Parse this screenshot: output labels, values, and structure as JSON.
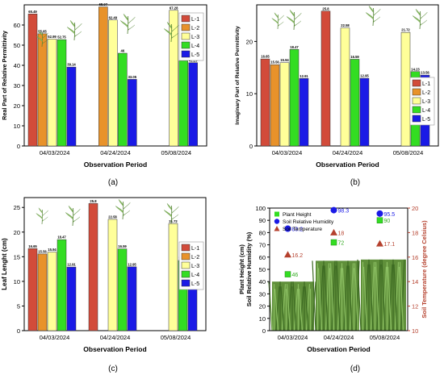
{
  "chart_data": [
    {
      "panel_label": "(a)",
      "type": "bar",
      "xlabel": "Observation Period",
      "ylabel": "Real Part of Relative Permittivity",
      "ylim": [
        0,
        70
      ],
      "yticks": [
        0,
        10,
        20,
        30,
        40,
        50,
        60
      ],
      "categories": [
        "04/03/2024",
        "04/24/2024",
        "05/08/2024"
      ],
      "series": [
        {
          "name": "L-1",
          "color": "#d24b3a",
          "values": [
            65.49,
            null,
            null
          ]
        },
        {
          "name": "L-2",
          "color": "#e8922a",
          "values": [
            55.65,
            68.97,
            null
          ]
        },
        {
          "name": "L-3",
          "color": "#ffff99",
          "values": [
            52.99,
            62.49,
            67.28
          ]
        },
        {
          "name": "L-4",
          "color": "#33dd22",
          "values": [
            52.75,
            46,
            42.28
          ]
        },
        {
          "name": "L-5",
          "color": "#1a1ae6",
          "values": [
            39.14,
            33.05,
            41.29
          ]
        }
      ],
      "legend": "right",
      "plant_icon_levels": [
        "L-1",
        "L-2",
        "L-3",
        "L-4",
        "L-5"
      ]
    },
    {
      "panel_label": "(b)",
      "type": "bar",
      "xlabel": "Observation Period",
      "ylabel": "Imaginary Part of Relative Permittivity",
      "ylim": [
        0,
        27
      ],
      "yticks": [
        0,
        10,
        20
      ],
      "categories": [
        "04/03/2024",
        "04/24/2024",
        "05/08/2024"
      ],
      "series": [
        {
          "name": "L-1",
          "color": "#d24b3a",
          "values": [
            16.65,
            25.8,
            null
          ]
        },
        {
          "name": "L-2",
          "color": "#e8922a",
          "values": [
            15.56,
            null,
            null
          ]
        },
        {
          "name": "L-3",
          "color": "#ffff99",
          "values": [
            15.94,
            22.58,
            21.72
          ]
        },
        {
          "name": "L-4",
          "color": "#33dd22",
          "values": [
            18.47,
            16.59,
            14.23
          ]
        },
        {
          "name": "L-5",
          "color": "#1a1ae6",
          "values": [
            12.91,
            12.95,
            13.56
          ]
        }
      ],
      "legend": "right",
      "plant_icon_levels": [
        "L-1",
        "L-2",
        "L-3",
        "L-4",
        "L-5"
      ]
    },
    {
      "panel_label": "(c)",
      "type": "bar",
      "xlabel": "Observation Period",
      "ylabel": "Leaf Lenght (cm)",
      "ylim": [
        0,
        27
      ],
      "yticks": [
        0,
        5,
        10,
        15,
        20,
        25
      ],
      "categories": [
        "04/03/2024",
        "04/24/2024",
        "05/08/2024"
      ],
      "series": [
        {
          "name": "L-1",
          "color": "#d24b3a",
          "values": [
            16.65,
            25.8,
            null
          ]
        },
        {
          "name": "L-2",
          "color": "#e8922a",
          "values": [
            15.56,
            null,
            null
          ]
        },
        {
          "name": "L-3",
          "color": "#ffff99",
          "values": [
            15.94,
            22.58,
            21.72
          ]
        },
        {
          "name": "L-4",
          "color": "#33dd22",
          "values": [
            18.47,
            16.59,
            14.23
          ]
        },
        {
          "name": "L-5",
          "color": "#1a1ae6",
          "values": [
            12.91,
            12.95,
            13.56
          ]
        }
      ],
      "legend": "right",
      "plant_icon_levels": [
        "L-1",
        "L-2",
        "L-3",
        "L-4",
        "L-5"
      ]
    },
    {
      "panel_label": "(d)",
      "type": "scatter",
      "xlabel": "Observation Period",
      "ylabel": "Plant Height (cm)\nSoil Relative Humidity (%)",
      "y2label": "Soil Temperature (degree Celsius)",
      "ylim": [
        0,
        100
      ],
      "yticks": [
        0,
        10,
        20,
        30,
        40,
        50,
        60,
        70,
        80,
        90,
        100
      ],
      "y2lim": [
        10,
        20
      ],
      "y2ticks": [
        10,
        12,
        14,
        16,
        18,
        20
      ],
      "categories": [
        "04/03/2024",
        "04/24/2024",
        "05/08/2024"
      ],
      "series": [
        {
          "name": "Plant Height",
          "marker": "square",
          "axis": "left",
          "color": "#33dd22",
          "values": [
            46,
            72,
            90
          ]
        },
        {
          "name": "Soil Relative Humidity",
          "marker": "circle",
          "axis": "left",
          "color": "#1a1ae6",
          "values": [
            83.2,
            98.3,
            95.5
          ]
        },
        {
          "name": "Soil Temperature",
          "marker": "triangle",
          "axis": "right",
          "color": "#b5402d",
          "values": [
            16.2,
            18,
            17.1
          ]
        }
      ],
      "legend": "top-left",
      "has_field_photos": true
    }
  ]
}
